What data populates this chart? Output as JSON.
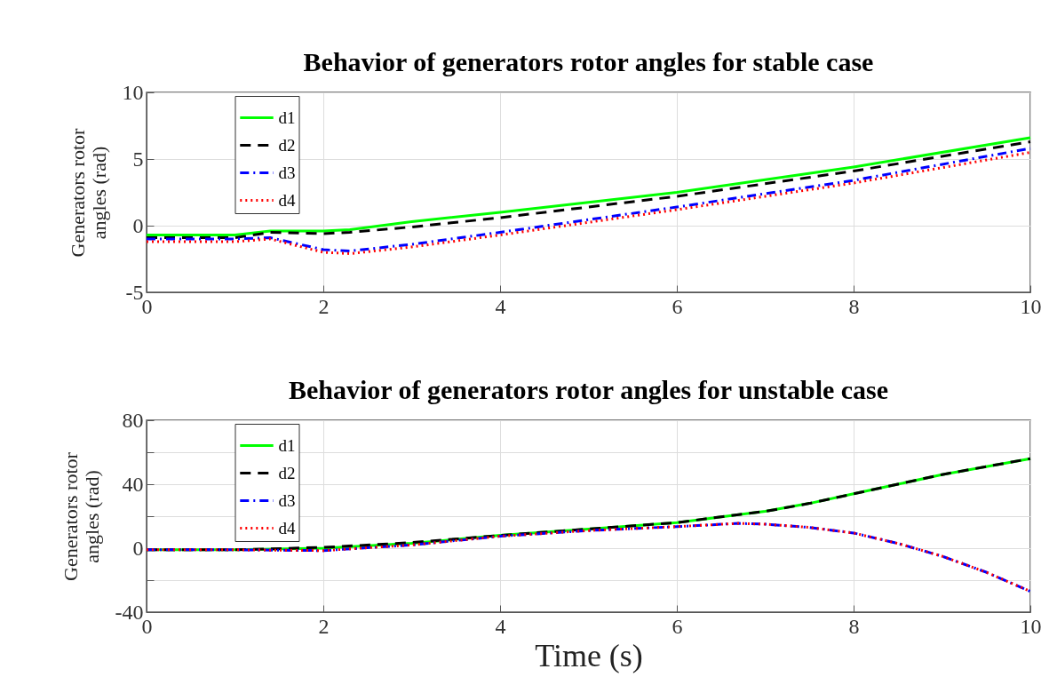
{
  "chart_data": [
    {
      "type": "line",
      "title": "Behavior of generators rotor angles for stable case",
      "ylabel": "Generators rotor angles (rad)",
      "xlim": [
        0,
        10
      ],
      "xticks": [
        0,
        2,
        4,
        6,
        8,
        10
      ],
      "ylim": [
        -5,
        10
      ],
      "yticks": [
        -5,
        0,
        5,
        10
      ],
      "grid": true,
      "legend": "top left",
      "marker": "none",
      "x": [
        0,
        1,
        1.4,
        2,
        2.3,
        3,
        4,
        6,
        8,
        10
      ],
      "series": [
        {
          "name": "d1",
          "color": "#00ff00",
          "line_style": "solid",
          "values": [
            -0.7,
            -0.7,
            -0.4,
            -0.4,
            -0.3,
            0.3,
            1.0,
            2.5,
            4.4,
            6.6
          ]
        },
        {
          "name": "d2",
          "color": "#000000",
          "line_style": "dashed",
          "values": [
            -0.9,
            -0.9,
            -0.5,
            -0.6,
            -0.5,
            -0.1,
            0.6,
            2.2,
            4.1,
            6.3
          ]
        },
        {
          "name": "d3",
          "color": "#0000ff",
          "line_style": "dashdot",
          "values": [
            -1.0,
            -1.0,
            -0.9,
            -1.8,
            -1.9,
            -1.4,
            -0.5,
            1.4,
            3.4,
            5.8
          ]
        },
        {
          "name": "d4",
          "color": "#ff0000",
          "line_style": "dotted",
          "values": [
            -1.2,
            -1.2,
            -1.0,
            -2.0,
            -2.1,
            -1.6,
            -0.7,
            1.2,
            3.2,
            5.5
          ]
        }
      ]
    },
    {
      "type": "line",
      "title": "Behavior of generators rotor angles for unstable case",
      "xlabel": "Time (s)",
      "ylabel": "Generators rotor angles (rad)",
      "xlim": [
        0,
        10
      ],
      "xticks": [
        0,
        2,
        4,
        6,
        8,
        10
      ],
      "ylim": [
        -40,
        80
      ],
      "yticks": [
        -40,
        {
          "value": -20,
          "label": null
        },
        0,
        {
          "value": 20,
          "label": null
        },
        40,
        {
          "value": 60,
          "label": null
        },
        80
      ],
      "grid": true,
      "legend": "top left",
      "marker": "none",
      "x": [
        0,
        1,
        2,
        3,
        4,
        5,
        6,
        6.7,
        7,
        7.5,
        8,
        8.5,
        9,
        9.5,
        10
      ],
      "series": [
        {
          "name": "d1",
          "color": "#00ff00",
          "line_style": "solid",
          "values": [
            -1,
            -1,
            0,
            3,
            8,
            12,
            16,
            21,
            23,
            28,
            34,
            40,
            46,
            51,
            56
          ]
        },
        {
          "name": "d2",
          "color": "#000000",
          "line_style": "dashed",
          "values": [
            -1,
            -1,
            0.5,
            3.5,
            8,
            12,
            16,
            21,
            23,
            28,
            34,
            40,
            46,
            51,
            56
          ]
        },
        {
          "name": "d3",
          "color": "#0000ff",
          "line_style": "dashdot",
          "values": [
            -1,
            -1,
            -1.5,
            2,
            7.5,
            11,
            13.5,
            15.5,
            15,
            13,
            9.5,
            3,
            -5,
            -15,
            -27
          ]
        },
        {
          "name": "d4",
          "color": "#ff0000",
          "line_style": "dotted",
          "values": [
            -1,
            -1,
            -1.5,
            2,
            7.5,
            11,
            13.5,
            15.5,
            15,
            13,
            9.5,
            3,
            -5,
            -15,
            -27
          ]
        }
      ]
    }
  ]
}
